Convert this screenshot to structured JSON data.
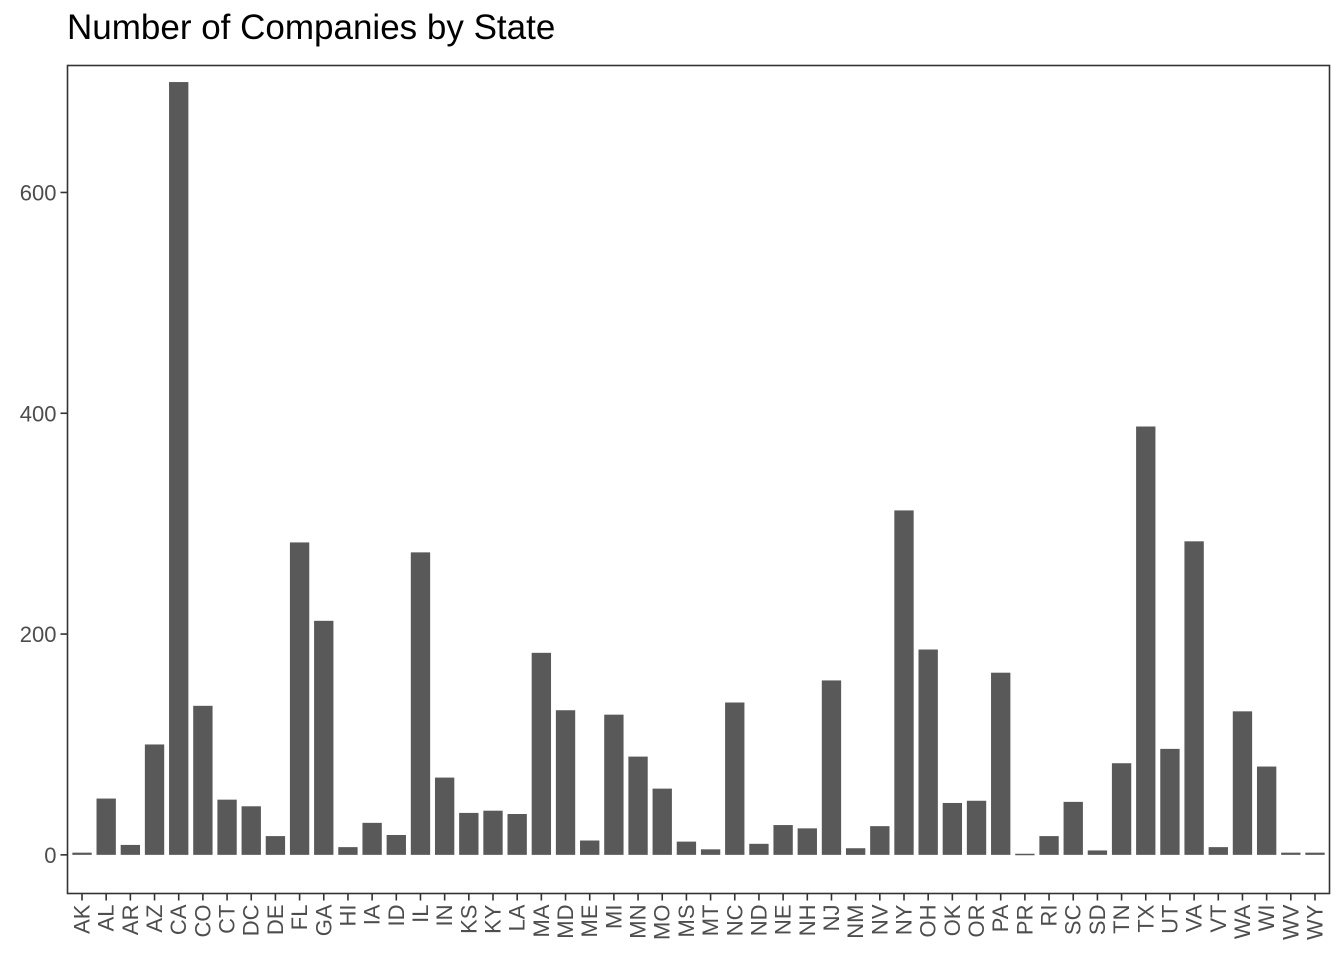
{
  "chart_data": {
    "type": "bar",
    "title": "Number of Companies by State",
    "xlabel": "",
    "ylabel": "",
    "ylim": [
      -35,
      715
    ],
    "yticks": [
      0,
      200,
      400,
      600
    ],
    "grid": false,
    "bar_color": "#595959",
    "categories": [
      "AK",
      "AL",
      "AR",
      "AZ",
      "CA",
      "CO",
      "CT",
      "DC",
      "DE",
      "FL",
      "GA",
      "HI",
      "IA",
      "ID",
      "IL",
      "IN",
      "KS",
      "KY",
      "LA",
      "MA",
      "MD",
      "ME",
      "MI",
      "MN",
      "MO",
      "MS",
      "MT",
      "NC",
      "ND",
      "NE",
      "NH",
      "NJ",
      "NM",
      "NV",
      "NY",
      "OH",
      "OK",
      "OR",
      "PA",
      "PR",
      "RI",
      "SC",
      "SD",
      "TN",
      "TX",
      "UT",
      "VA",
      "VT",
      "WA",
      "WI",
      "WV",
      "WY"
    ],
    "values": [
      2,
      51,
      9,
      100,
      700,
      135,
      50,
      44,
      17,
      283,
      212,
      7,
      29,
      18,
      274,
      70,
      38,
      40,
      37,
      183,
      131,
      13,
      127,
      89,
      60,
      12,
      5,
      138,
      10,
      27,
      24,
      158,
      6,
      26,
      312,
      186,
      47,
      49,
      165,
      1,
      17,
      48,
      4,
      83,
      388,
      96,
      284,
      7,
      130,
      80,
      2,
      2
    ]
  }
}
